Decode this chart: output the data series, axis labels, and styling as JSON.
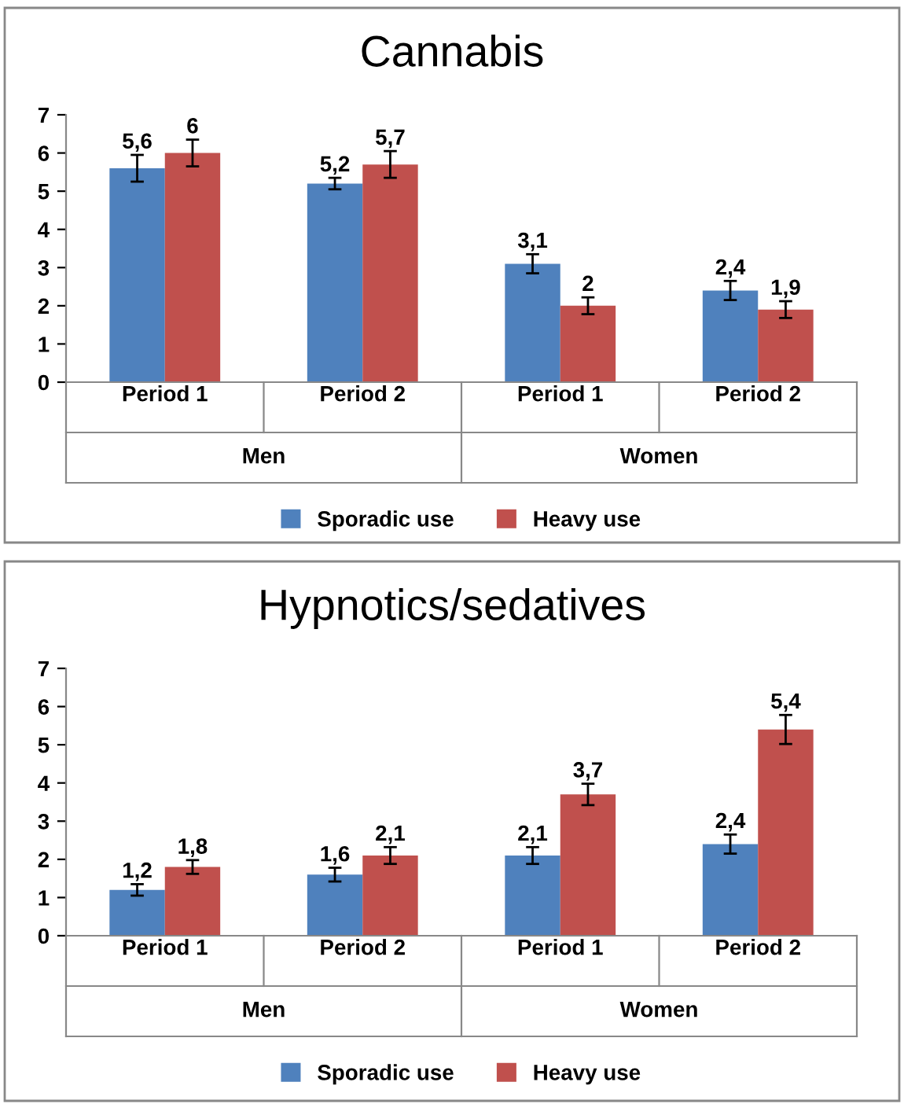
{
  "chart_data": [
    {
      "type": "bar",
      "title": "Cannabis",
      "categories": [
        "Period 1",
        "Period 2",
        "Period 1",
        "Period 2"
      ],
      "annotations": [
        "Men",
        "Women"
      ],
      "ylim": [
        0,
        7
      ],
      "yticks": [
        0,
        1,
        2,
        3,
        4,
        5,
        6,
        7
      ],
      "grid": false,
      "legend": "bottom",
      "series": [
        {
          "name": "Sporadic use",
          "color": "#4f81bd",
          "values": [
            5.6,
            5.2,
            3.1,
            2.4
          ],
          "errors": [
            0.35,
            0.15,
            0.25,
            0.25
          ],
          "value_labels": [
            "5,6",
            "5,2",
            "3,1",
            "2,4"
          ]
        },
        {
          "name": "Heavy use",
          "color": "#c0504d",
          "values": [
            6,
            5.7,
            2,
            1.9
          ],
          "errors": [
            0.35,
            0.35,
            0.22,
            0.22
          ],
          "value_labels": [
            "6",
            "5,7",
            "2",
            "1,9"
          ]
        }
      ]
    },
    {
      "type": "bar",
      "title": "Hypnotics/sedatives",
      "categories": [
        "Period 1",
        "Period 2",
        "Period 1",
        "Period 2"
      ],
      "annotations": [
        "Men",
        "Women"
      ],
      "ylim": [
        0,
        7
      ],
      "yticks": [
        0,
        1,
        2,
        3,
        4,
        5,
        6,
        7
      ],
      "grid": false,
      "legend": "bottom",
      "series": [
        {
          "name": "Sporadic use",
          "color": "#4f81bd",
          "values": [
            1.2,
            1.6,
            2.1,
            2.4
          ],
          "errors": [
            0.15,
            0.18,
            0.22,
            0.25
          ],
          "value_labels": [
            "1,2",
            "1,6",
            "2,1",
            "2,4"
          ]
        },
        {
          "name": "Heavy use",
          "color": "#c0504d",
          "values": [
            1.8,
            2.1,
            3.7,
            5.4
          ],
          "errors": [
            0.18,
            0.22,
            0.28,
            0.38
          ],
          "value_labels": [
            "1,8",
            "2,1",
            "3,7",
            "5,4"
          ]
        }
      ]
    }
  ]
}
